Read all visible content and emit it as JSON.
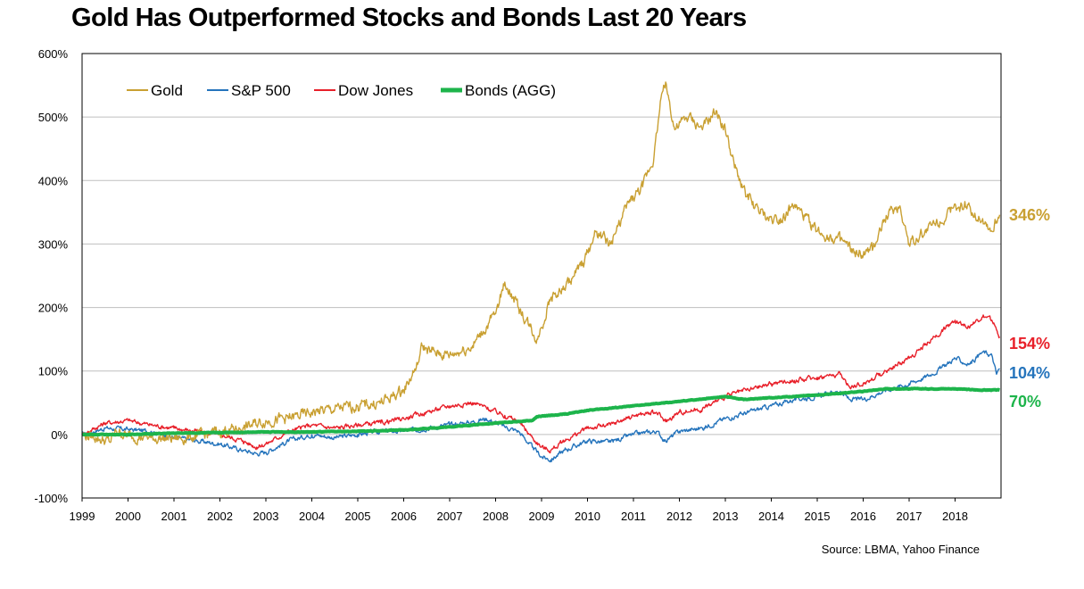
{
  "chart_data": {
    "type": "line",
    "title": "Gold Has Outperformed Stocks and Bonds Last 20 Years",
    "source": "Source: LBMA, Yahoo Finance",
    "xlim": [
      1999,
      2019
    ],
    "ylim": [
      -100,
      600
    ],
    "x_ticks": [
      "1999",
      "2000",
      "2001",
      "2002",
      "2003",
      "2004",
      "2005",
      "2006",
      "2007",
      "2008",
      "2009",
      "2010",
      "2011",
      "2012",
      "2013",
      "2014",
      "2015",
      "2016",
      "2017",
      "2018"
    ],
    "y_ticks": [
      "-100%",
      "0%",
      "100%",
      "200%",
      "300%",
      "400%",
      "500%",
      "600%"
    ],
    "grid": "horizontal",
    "legend_position": "top-left",
    "series": [
      {
        "name": "Gold",
        "color": "#C9A032",
        "end_label": "346%",
        "x": [
          1999.0,
          1999.3,
          1999.6,
          1999.75,
          2000.0,
          2000.5,
          2001.0,
          2001.5,
          2002.0,
          2002.5,
          2003.0,
          2003.5,
          2004.0,
          2004.5,
          2005.0,
          2005.5,
          2006.0,
          2006.3,
          2006.4,
          2006.6,
          2007.0,
          2007.5,
          2008.0,
          2008.2,
          2008.5,
          2008.75,
          2008.9,
          2009.2,
          2009.5,
          2009.9,
          2010.2,
          2010.5,
          2010.9,
          2011.2,
          2011.45,
          2011.6,
          2011.7,
          2011.9,
          2012.2,
          2012.5,
          2012.8,
          2013.0,
          2013.2,
          2013.5,
          2013.9,
          2014.2,
          2014.5,
          2015.0,
          2015.5,
          2015.9,
          2016.2,
          2016.5,
          2016.8,
          2017.0,
          2017.5,
          2017.9,
          2018.2,
          2018.6,
          2018.8,
          2018.97
        ],
        "y": [
          0,
          -5,
          -12,
          5,
          -2,
          -5,
          -7,
          -3,
          5,
          10,
          22,
          25,
          35,
          40,
          45,
          50,
          70,
          110,
          140,
          130,
          125,
          140,
          190,
          240,
          200,
          170,
          150,
          215,
          230,
          270,
          320,
          300,
          365,
          390,
          440,
          530,
          555,
          480,
          500,
          480,
          510,
          480,
          420,
          370,
          340,
          340,
          360,
          320,
          305,
          280,
          290,
          345,
          360,
          300,
          330,
          350,
          360,
          340,
          320,
          346
        ]
      },
      {
        "name": "S&P 500",
        "color": "#2574BC",
        "end_label": "104%",
        "x": [
          1999.0,
          1999.5,
          2000.0,
          2000.5,
          2001.0,
          2001.5,
          2002.0,
          2002.5,
          2002.8,
          2003.0,
          2003.5,
          2004.0,
          2004.5,
          2005.0,
          2005.5,
          2006.0,
          2006.5,
          2007.0,
          2007.5,
          2007.8,
          2008.2,
          2008.5,
          2008.8,
          2009.0,
          2009.2,
          2009.5,
          2010.0,
          2010.5,
          2011.0,
          2011.5,
          2011.7,
          2012.0,
          2012.5,
          2013.0,
          2013.5,
          2014.0,
          2014.5,
          2015.0,
          2015.5,
          2015.7,
          2016.0,
          2016.5,
          2017.0,
          2017.5,
          2018.0,
          2018.3,
          2018.6,
          2018.8,
          2018.9,
          2018.97
        ],
        "y": [
          0,
          10,
          8,
          5,
          -5,
          -10,
          -15,
          -25,
          -30,
          -28,
          -10,
          0,
          -5,
          0,
          5,
          5,
          10,
          15,
          20,
          25,
          12,
          5,
          -20,
          -35,
          -40,
          -25,
          -10,
          -12,
          0,
          5,
          -10,
          5,
          10,
          25,
          35,
          45,
          55,
          60,
          68,
          55,
          55,
          70,
          80,
          95,
          120,
          110,
          130,
          125,
          95,
          104
        ]
      },
      {
        "name": "Dow Jones",
        "color": "#E8202A",
        "end_label": "154%",
        "x": [
          1999.0,
          1999.5,
          2000.0,
          2000.5,
          2001.0,
          2001.5,
          2002.0,
          2002.5,
          2002.8,
          2003.0,
          2003.5,
          2004.0,
          2004.5,
          2005.0,
          2005.5,
          2006.0,
          2006.5,
          2007.0,
          2007.5,
          2007.8,
          2008.2,
          2008.5,
          2008.8,
          2009.0,
          2009.2,
          2009.5,
          2010.0,
          2010.5,
          2011.0,
          2011.5,
          2011.7,
          2012.0,
          2012.5,
          2013.0,
          2013.5,
          2014.0,
          2014.5,
          2015.0,
          2015.5,
          2015.7,
          2016.0,
          2016.5,
          2017.0,
          2017.5,
          2018.0,
          2018.3,
          2018.6,
          2018.8,
          2018.9,
          2018.97
        ],
        "y": [
          0,
          18,
          22,
          15,
          10,
          5,
          0,
          -10,
          -20,
          -15,
          5,
          15,
          10,
          15,
          18,
          25,
          35,
          45,
          50,
          42,
          30,
          20,
          -5,
          -20,
          -25,
          -10,
          10,
          15,
          30,
          35,
          20,
          35,
          40,
          60,
          70,
          80,
          85,
          90,
          95,
          75,
          80,
          100,
          120,
          150,
          180,
          170,
          185,
          180,
          165,
          154
        ]
      },
      {
        "name": "Bonds (AGG)",
        "color": "#1DB44B",
        "end_label": "70%",
        "x": [
          1999.0,
          2000.0,
          2001.0,
          2002.0,
          2003.0,
          2004.0,
          2005.0,
          2006.0,
          2007.0,
          2008.0,
          2008.8,
          2008.9,
          2009.5,
          2010.0,
          2011.0,
          2012.0,
          2013.0,
          2013.4,
          2014.0,
          2015.0,
          2016.0,
          2016.5,
          2017.0,
          2018.0,
          2018.5,
          2018.97
        ],
        "y": [
          0,
          0,
          2,
          3,
          4,
          4,
          5,
          7,
          12,
          18,
          22,
          28,
          32,
          38,
          45,
          52,
          60,
          55,
          58,
          62,
          68,
          72,
          72,
          72,
          70,
          70
        ]
      }
    ]
  }
}
